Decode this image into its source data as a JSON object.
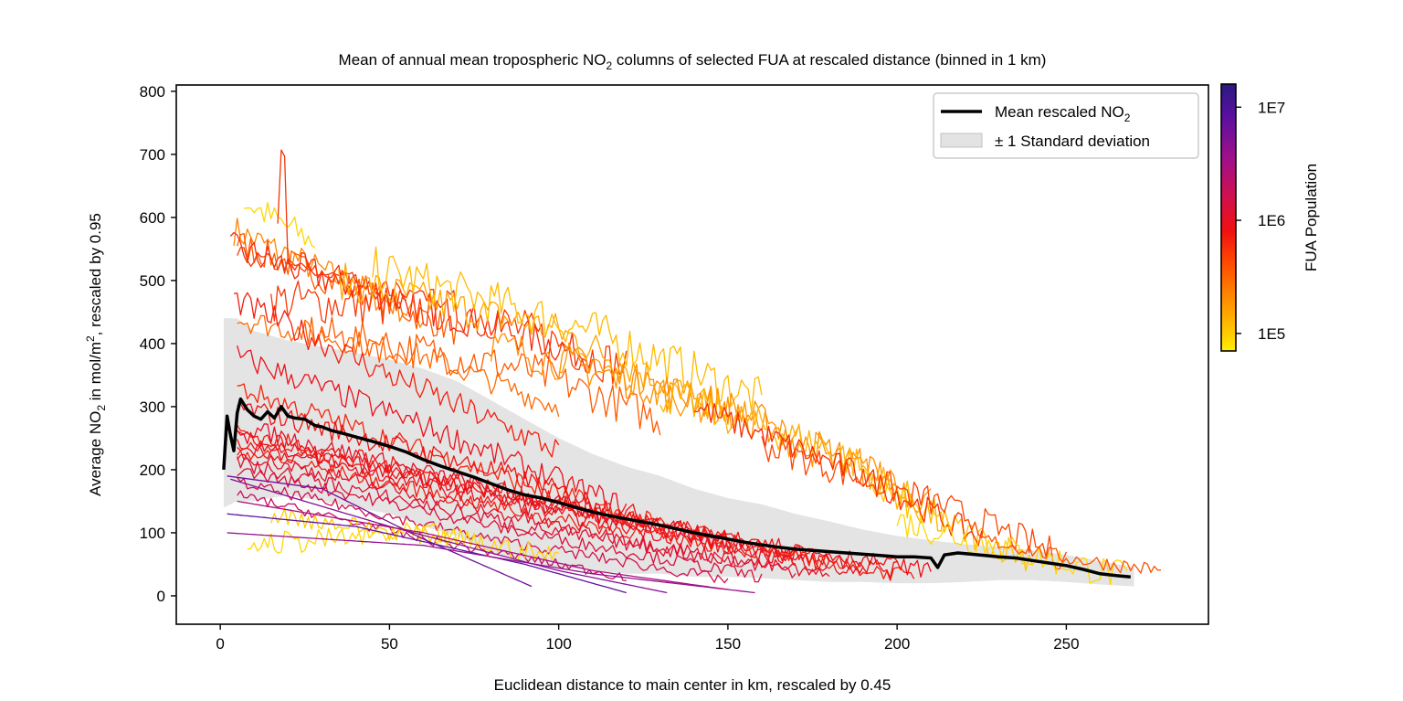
{
  "chart_data": {
    "type": "line",
    "title_prefix": "Mean of annual mean tropospheric NO",
    "title_sub": "2",
    "title_suffix": " columns of selected FUA at rescaled distance (binned in 1 km)",
    "xlabel": "Euclidean distance to main center in km, rescaled by 0.45",
    "ylabel_prefix": "Average NO",
    "ylabel_sub": "2",
    "ylabel_mid": " in mol/m",
    "ylabel_sup": "2",
    "ylabel_suffix": ", rescaled by 0.95",
    "xlim": [
      -13,
      292
    ],
    "ylim": [
      -45,
      810
    ],
    "xticks": [
      0,
      50,
      100,
      150,
      200,
      250
    ],
    "yticks": [
      0,
      100,
      200,
      300,
      400,
      500,
      600,
      700,
      800
    ],
    "legend": {
      "position": "top-right",
      "mean_label_prefix": "Mean rescaled NO",
      "mean_label_sub": "2",
      "std_label": "± 1 Standard deviation"
    },
    "colorbar": {
      "label": "FUA Population",
      "scale": "log",
      "min": 70000,
      "max": 16000000,
      "ticks": [
        {
          "value": 100000,
          "label": "1E5"
        },
        {
          "value": 1000000,
          "label": "1E6"
        },
        {
          "value": 10000000,
          "label": "1E7"
        }
      ],
      "colormap": "gnuplot2-like (yellow → orange → red → magenta → indigo)"
    },
    "mean_series": [
      [
        1,
        200
      ],
      [
        2,
        285
      ],
      [
        3,
        255
      ],
      [
        4,
        230
      ],
      [
        5,
        290
      ],
      [
        6,
        312
      ],
      [
        8,
        295
      ],
      [
        10,
        285
      ],
      [
        12,
        280
      ],
      [
        14,
        292
      ],
      [
        16,
        282
      ],
      [
        18,
        300
      ],
      [
        20,
        285
      ],
      [
        22,
        282
      ],
      [
        25,
        280
      ],
      [
        28,
        270
      ],
      [
        30,
        268
      ],
      [
        33,
        262
      ],
      [
        36,
        258
      ],
      [
        40,
        252
      ],
      [
        45,
        245
      ],
      [
        50,
        237
      ],
      [
        55,
        228
      ],
      [
        60,
        216
      ],
      [
        65,
        206
      ],
      [
        70,
        197
      ],
      [
        75,
        188
      ],
      [
        80,
        178
      ],
      [
        85,
        168
      ],
      [
        90,
        160
      ],
      [
        95,
        155
      ],
      [
        100,
        148
      ],
      [
        105,
        140
      ],
      [
        110,
        133
      ],
      [
        115,
        127
      ],
      [
        120,
        122
      ],
      [
        125,
        117
      ],
      [
        130,
        112
      ],
      [
        135,
        106
      ],
      [
        140,
        100
      ],
      [
        145,
        95
      ],
      [
        150,
        90
      ],
      [
        155,
        85
      ],
      [
        160,
        81
      ],
      [
        165,
        77
      ],
      [
        170,
        74
      ],
      [
        175,
        72
      ],
      [
        180,
        70
      ],
      [
        185,
        68
      ],
      [
        190,
        66
      ],
      [
        195,
        64
      ],
      [
        200,
        62
      ],
      [
        205,
        62
      ],
      [
        210,
        60
      ],
      [
        212,
        45
      ],
      [
        214,
        65
      ],
      [
        218,
        68
      ],
      [
        222,
        66
      ],
      [
        226,
        64
      ],
      [
        230,
        62
      ],
      [
        235,
        60
      ],
      [
        240,
        56
      ],
      [
        245,
        52
      ],
      [
        250,
        48
      ],
      [
        255,
        42
      ],
      [
        260,
        35
      ],
      [
        265,
        32
      ],
      [
        269,
        30
      ]
    ],
    "std_band": {
      "x": [
        1,
        5,
        10,
        20,
        30,
        40,
        50,
        60,
        70,
        80,
        90,
        100,
        110,
        120,
        130,
        140,
        150,
        160,
        170,
        180,
        190,
        200,
        210,
        220,
        230,
        240,
        250,
        260,
        270
      ],
      "upper": [
        440,
        440,
        420,
        405,
        395,
        385,
        375,
        360,
        340,
        310,
        280,
        250,
        225,
        205,
        190,
        170,
        155,
        145,
        130,
        118,
        105,
        95,
        88,
        82,
        78,
        72,
        65,
        55,
        45
      ],
      "lower": [
        140,
        150,
        150,
        160,
        150,
        140,
        130,
        110,
        95,
        70,
        55,
        45,
        40,
        35,
        35,
        30,
        30,
        28,
        25,
        22,
        22,
        20,
        20,
        22,
        25,
        25,
        22,
        18,
        15
      ]
    },
    "series": [
      {
        "pop": 220000,
        "x": [
          4,
          60
        ],
        "y": [
          580,
          440
        ],
        "noise": 25
      },
      {
        "pop": 90000,
        "x": [
          7,
          28
        ],
        "y": [
          625,
          560
        ],
        "noise": 25
      },
      {
        "pop": 350000,
        "x": [
          5,
          70
        ],
        "y": [
          560,
          420
        ],
        "noise": 25
      },
      {
        "pop": 600000,
        "x": [
          3,
          110
        ],
        "y": [
          550,
          380
        ],
        "noise": 28
      },
      {
        "pop": 550000,
        "x": [
          17,
          18.5,
          20,
          40
        ],
        "y": [
          600,
          770,
          520,
          500
        ],
        "noise": 12
      },
      {
        "pop": 500000,
        "x": [
          5,
          55
        ],
        "y": [
          540,
          480
        ],
        "noise": 15
      },
      {
        "pop": 520000,
        "x": [
          15,
          75,
          120
        ],
        "y": [
          470,
          450,
          360
        ],
        "noise": 35
      },
      {
        "pop": 150000,
        "x": [
          35,
          100,
          145
        ],
        "y": [
          500,
          420,
          300
        ],
        "noise": 30
      },
      {
        "pop": 120000,
        "x": [
          45,
          110,
          160
        ],
        "y": [
          520,
          420,
          310
        ],
        "noise": 35
      },
      {
        "pop": 350000,
        "x": [
          25,
          90,
          130
        ],
        "y": [
          420,
          360,
          280
        ],
        "noise": 30
      },
      {
        "pop": 300000,
        "x": [
          5,
          60,
          100
        ],
        "y": [
          440,
          380,
          300
        ],
        "noise": 20
      },
      {
        "pop": 200000,
        "x": [
          80,
          150,
          200
        ],
        "y": [
          400,
          300,
          180
        ],
        "noise": 30
      },
      {
        "pop": 180000,
        "x": [
          100,
          160,
          210
        ],
        "y": [
          380,
          270,
          150
        ],
        "noise": 30
      },
      {
        "pop": 130000,
        "x": [
          130,
          182,
          215
        ],
        "y": [
          320,
          230,
          110
        ],
        "noise": 30
      },
      {
        "pop": 110000,
        "x": [
          190,
          220,
          240
        ],
        "y": [
          180,
          100,
          60
        ],
        "noise": 25
      },
      {
        "pop": 600000,
        "x": [
          140,
          190,
          225
        ],
        "y": [
          300,
          190,
          90
        ],
        "noise": 22
      },
      {
        "pop": 450000,
        "x": [
          160,
          210,
          250
        ],
        "y": [
          240,
          150,
          60
        ],
        "noise": 25
      },
      {
        "pop": 90000,
        "x": [
          200,
          235,
          268
        ],
        "y": [
          120,
          70,
          30
        ],
        "noise": 25
      },
      {
        "pop": 400000,
        "x": [
          225,
          250,
          278
        ],
        "y": [
          90,
          60,
          40
        ],
        "noise": 12
      },
      {
        "pop": 700000,
        "x": [
          4,
          50,
          100
        ],
        "y": [
          470,
          350,
          230
        ],
        "noise": 22
      },
      {
        "pop": 900000,
        "x": [
          5,
          60,
          120
        ],
        "y": [
          380,
          270,
          140
        ],
        "noise": 20
      },
      {
        "pop": 650000,
        "x": [
          5,
          60,
          130
        ],
        "y": [
          330,
          230,
          110
        ],
        "noise": 18
      },
      {
        "pop": 800000,
        "x": [
          5,
          80,
          150
        ],
        "y": [
          300,
          200,
          80
        ],
        "noise": 18
      },
      {
        "pop": 1100000,
        "x": [
          5,
          80,
          170
        ],
        "y": [
          270,
          170,
          60
        ],
        "noise": 15
      },
      {
        "pop": 750000,
        "x": [
          5,
          90,
          180
        ],
        "y": [
          260,
          160,
          50
        ],
        "noise": 15
      },
      {
        "pop": 850000,
        "x": [
          5,
          100,
          200
        ],
        "y": [
          250,
          140,
          40
        ],
        "noise": 14
      },
      {
        "pop": 950000,
        "x": [
          5,
          100,
          190
        ],
        "y": [
          240,
          130,
          35
        ],
        "noise": 13
      },
      {
        "pop": 700000,
        "x": [
          5,
          100,
          205
        ],
        "y": [
          230,
          120,
          30
        ],
        "noise": 12
      },
      {
        "pop": 1000000,
        "x": [
          5,
          100,
          180
        ],
        "y": [
          225,
          110,
          30
        ],
        "noise": 12
      },
      {
        "pop": 1300000,
        "x": [
          5,
          90,
          160
        ],
        "y": [
          200,
          100,
          30
        ],
        "noise": 10
      },
      {
        "pop": 1600000,
        "x": [
          5,
          80,
          150
        ],
        "y": [
          180,
          90,
          25
        ],
        "noise": 9
      },
      {
        "pop": 2000000,
        "x": [
          5,
          60,
          120
        ],
        "y": [
          160,
          90,
          30
        ],
        "noise": 8
      },
      {
        "pop": 1200000,
        "x": [
          5,
          90,
          170
        ],
        "y": [
          210,
          110,
          40
        ],
        "noise": 12
      },
      {
        "pop": 850000,
        "x": [
          5,
          110,
          210
        ],
        "y": [
          245,
          130,
          40
        ],
        "noise": 13
      },
      {
        "pop": 90000,
        "x": [
          8,
          60,
          100
        ],
        "y": [
          80,
          100,
          60
        ],
        "noise": 18
      },
      {
        "pop": 100000,
        "x": [
          15,
          40,
          70
        ],
        "y": [
          130,
          110,
          90
        ],
        "noise": 15
      },
      {
        "pop": 6000000,
        "x": [
          2,
          30,
          60,
          92
        ],
        "y": [
          190,
          170,
          90,
          15
        ],
        "noise": 0
      },
      {
        "pop": 8000000,
        "x": [
          2,
          40,
          90,
          120
        ],
        "y": [
          130,
          110,
          50,
          5
        ],
        "noise": 0
      },
      {
        "pop": 4000000,
        "x": [
          2,
          60,
          110,
          158
        ],
        "y": [
          100,
          80,
          35,
          5
        ],
        "noise": 0
      },
      {
        "pop": 5000000,
        "x": [
          3,
          50,
          100,
          132
        ],
        "y": [
          185,
          110,
          40,
          5
        ],
        "noise": 0
      },
      {
        "pop": 3000000,
        "x": [
          5,
          60,
          110,
          150
        ],
        "y": [
          150,
          100,
          40,
          10
        ],
        "noise": 0
      }
    ]
  }
}
